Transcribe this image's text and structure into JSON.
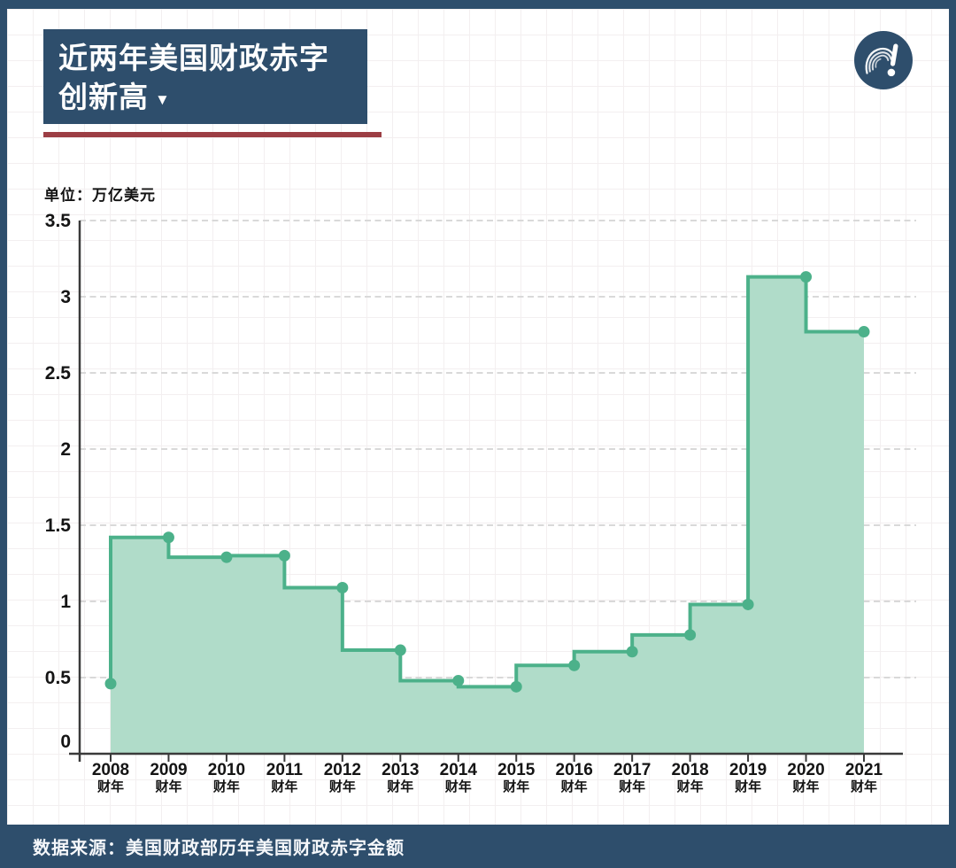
{
  "colors": {
    "navy": "#2e4e6c",
    "red": "#9c3e44",
    "line_green": "#4cb18a",
    "fill_green": "#b0dcc9",
    "axis": "#3a3a3a",
    "grid_dash": "#d9d9d9",
    "text_dark": "#141414"
  },
  "header": {
    "title_line1": "近两年美国财政赤字",
    "title_line2": "创新高",
    "dropdown_arrow": "▼"
  },
  "logo": {
    "glyph": "?!"
  },
  "unit_label": "单位：万亿美元",
  "footer": {
    "source_label": "数据来源：美国财政部历年美国财政赤字金额"
  },
  "chart_data": {
    "type": "area",
    "step": "start",
    "title": "近两年美国财政赤字创新高",
    "ylabel": "万亿美元",
    "xlabel": "财年",
    "categories": [
      "2008",
      "2009",
      "2010",
      "2011",
      "2012",
      "2013",
      "2014",
      "2015",
      "2016",
      "2017",
      "2018",
      "2019",
      "2020",
      "2021"
    ],
    "category_suffix": "财年",
    "values": [
      0.46,
      1.42,
      1.29,
      1.3,
      1.09,
      0.68,
      0.48,
      0.44,
      0.58,
      0.67,
      0.78,
      0.98,
      3.13,
      2.77
    ],
    "ylim": [
      0,
      3.5
    ],
    "yticks": [
      0,
      0.5,
      1,
      1.5,
      2,
      2.5,
      3,
      3.5
    ],
    "grid": "horizontal-dashed",
    "legend": "none",
    "marker": "dot"
  }
}
